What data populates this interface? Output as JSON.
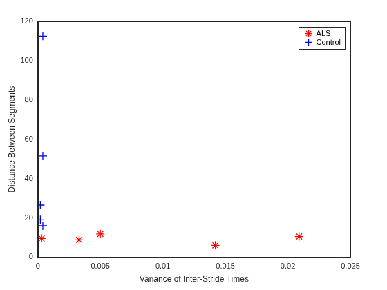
{
  "chart_data": {
    "type": "scatter",
    "x_label": "Variance of Inter-Stride Times",
    "y_label": "Distance Between Segments",
    "series": [
      {
        "name": "ALS",
        "color": "#ff0000",
        "marker": "asterisk",
        "x": [
          0.0003,
          0.0033,
          0.005,
          0.0142,
          0.0209
        ],
        "values": [
          9.5,
          8.8,
          11.8,
          6,
          10.5
        ]
      },
      {
        "name": "Control",
        "color": "#0000ff",
        "marker": "plus",
        "x": [
          0.0004,
          0.0004,
          0.0002,
          0.0002,
          0.0004
        ],
        "values": [
          112.5,
          51.5,
          26.5,
          19,
          16
        ]
      }
    ],
    "xlim": [
      0,
      0.025
    ],
    "xticks": [
      0,
      0.005,
      0.01,
      0.015,
      0.02,
      0.025
    ],
    "ylim": [
      0,
      120
    ],
    "yticks": [
      0,
      20,
      40,
      60,
      80,
      100,
      120
    ],
    "grid": false,
    "legend": "northeast"
  }
}
